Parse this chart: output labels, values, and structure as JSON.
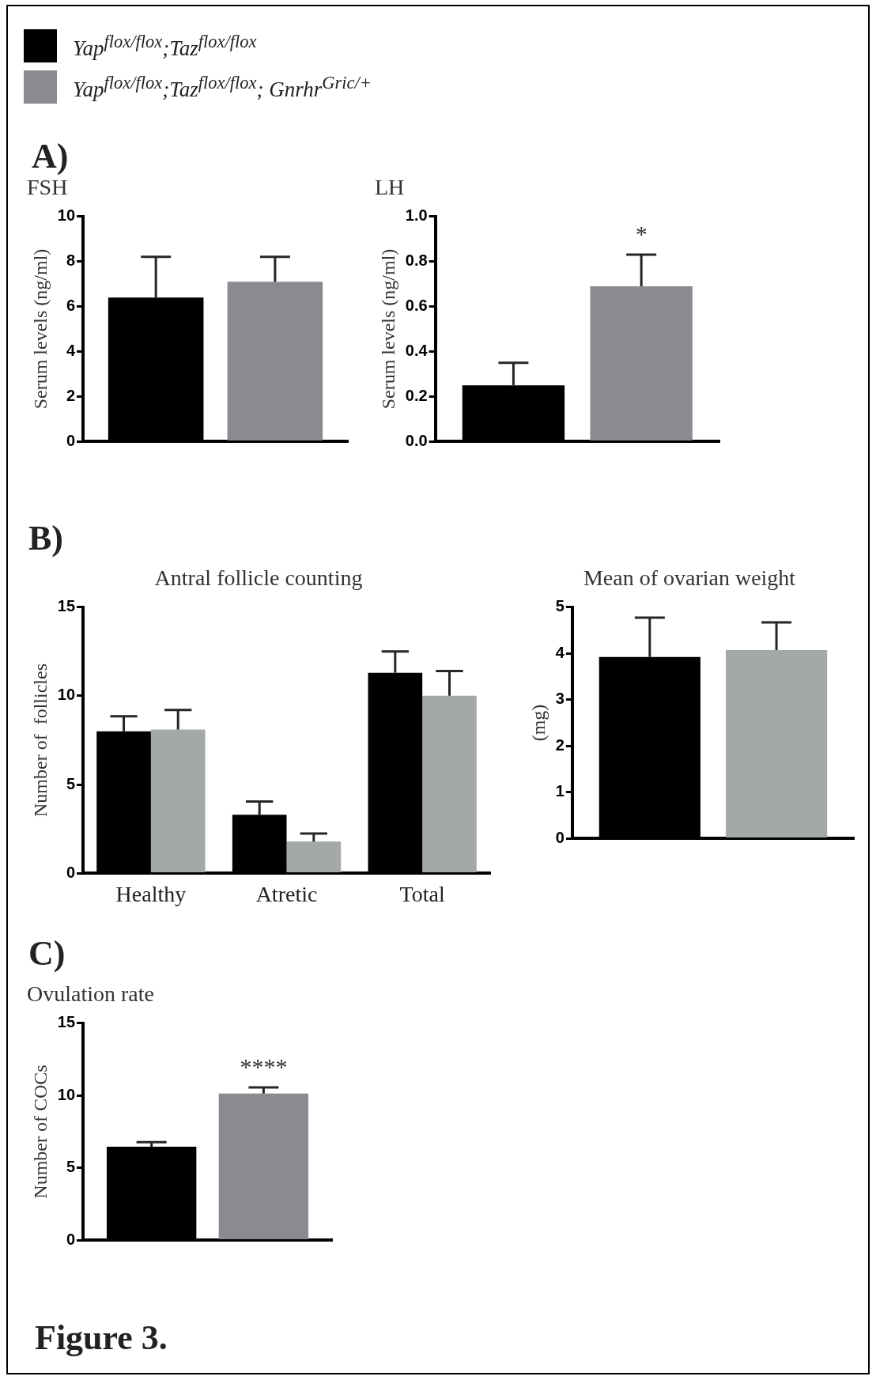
{
  "chart_data": [
    {
      "type": "bar",
      "title": "FSH",
      "ylabel": "Serum levels (ng/ml)",
      "categories": [
        null
      ],
      "legend": "top left",
      "annotations": [
        "A)"
      ],
      "series": [
        {
          "name": "Yap$^{flox/flox}$;Taz$^{flox/flox}$",
          "color": "#000000",
          "values": [
            6.4
          ],
          "errors": [
            [
              6.4,
              8.2
            ]
          ]
        },
        {
          "name": "Yap$^{flox/flox}$;Taz$^{flox/flox}$; Gnrhr$^{Gric/+}$",
          "color": "#8a8b91",
          "values": [
            7.1
          ],
          "errors": [
            [
              7.1,
              8.2
            ]
          ]
        }
      ],
      "ylim": [
        0,
        10
      ],
      "yticks": [
        0,
        2,
        4,
        6,
        8,
        10
      ],
      "grid": false
    },
    {
      "type": "bar",
      "title": "LH",
      "ylabel": "Serum levels (ng/ml)",
      "categories": [
        null
      ],
      "annotations": [
        "*"
      ],
      "series": [
        {
          "color": "#000000",
          "values": [
            0.25
          ],
          "errors": [
            [
              0.25,
              0.35
            ]
          ]
        },
        {
          "color": "#8a8b91",
          "values": [
            0.69
          ],
          "errors": [
            [
              0.69,
              0.83
            ]
          ]
        }
      ],
      "ylim": [
        0,
        1
      ],
      "yticks": [
        {
          "value": 0,
          "label": "0.0"
        },
        {
          "value": 0.2,
          "label": "0.2"
        },
        {
          "value": 0.4,
          "label": "0.4"
        },
        {
          "value": 0.6,
          "label": "0.6"
        },
        {
          "value": 0.8,
          "label": "0.8"
        },
        {
          "value": 1,
          "label": "1.0"
        }
      ],
      "grid": false
    },
    {
      "type": "bar",
      "title": "Antral follicle counting",
      "ylabel": "Number of  follicles",
      "categories": [
        "Healthy",
        "Atretic",
        "Total"
      ],
      "annotations": [
        "B)"
      ],
      "series": [
        {
          "color": "#000000",
          "values": [
            8.0,
            3.3,
            11.3
          ],
          "errors": [
            [
              8.0,
              8.85
            ],
            [
              3.3,
              4.05
            ],
            [
              11.3,
              12.5
            ]
          ]
        },
        {
          "color": "#a5a8a9",
          "values": [
            8.1,
            1.8,
            10.0
          ],
          "errors": [
            [
              8.1,
              9.2
            ],
            [
              1.8,
              2.25
            ],
            [
              10.0,
              11.4
            ]
          ]
        }
      ],
      "ylim": [
        0,
        15
      ],
      "yticks": [
        0,
        5,
        10,
        15
      ],
      "grid": false
    },
    {
      "type": "bar",
      "title": "Mean of ovarian weight",
      "ylabel": "(mg)",
      "categories": [
        null
      ],
      "series": [
        {
          "color": "#000000",
          "values": [
            3.92
          ],
          "errors": [
            [
              3.92,
              4.77
            ]
          ]
        },
        {
          "color": "#a5a8a9",
          "values": [
            4.07
          ],
          "errors": [
            [
              4.07,
              4.67
            ]
          ]
        }
      ],
      "ylim": [
        0,
        5
      ],
      "yticks": [
        0,
        1,
        2,
        3,
        4,
        5
      ],
      "grid": false
    },
    {
      "type": "bar",
      "title": "Ovulation rate",
      "ylabel": "Number of COCs",
      "categories": [
        null
      ],
      "annotations": [
        "C)",
        "Figure 3.",
        "****"
      ],
      "series": [
        {
          "color": "#000000",
          "values": [
            6.46
          ],
          "errors": [
            [
              6.46,
              6.78
            ]
          ]
        },
        {
          "color": "#8a8b91",
          "values": [
            10.13
          ],
          "errors": [
            [
              10.13,
              10.55
            ]
          ]
        }
      ],
      "ylim": [
        0,
        15
      ],
      "yticks": [
        0,
        5,
        10,
        15
      ],
      "grid": false
    }
  ]
}
